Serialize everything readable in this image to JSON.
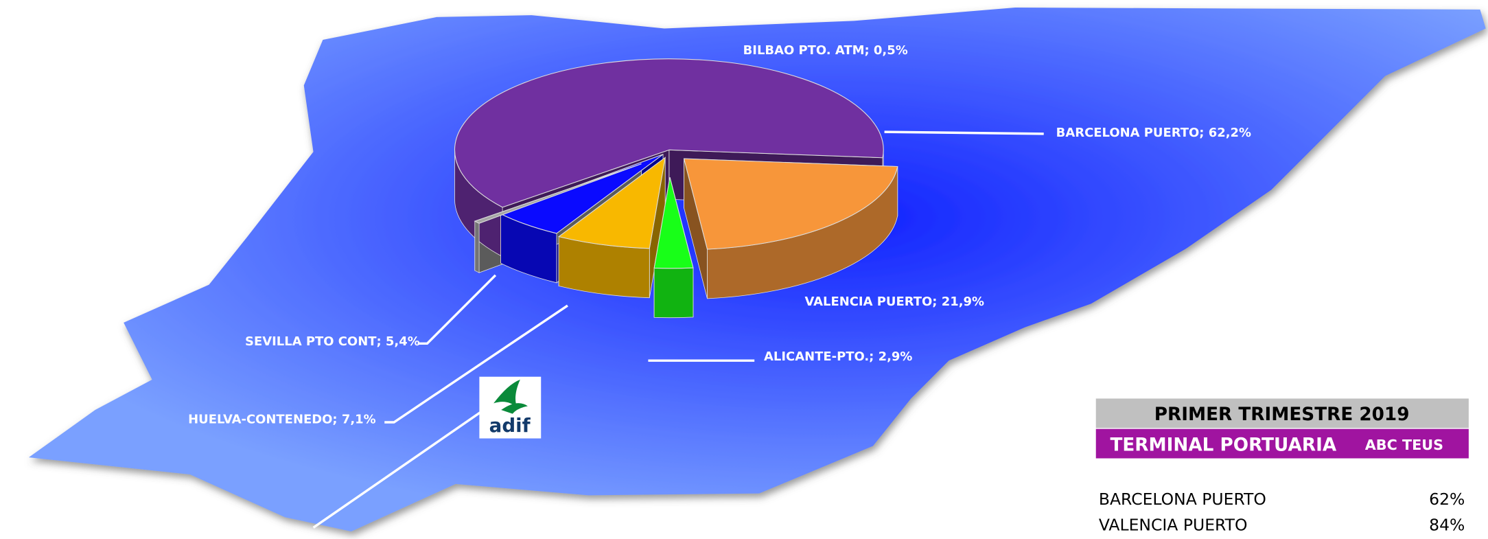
{
  "chart_data": {
    "type": "pie",
    "categories": [
      "BARCELONA PUERTO",
      "VALENCIA PUERTO",
      "ALICANTE-PTO.",
      "HUELVA-CONTENEDO",
      "SEVILLA PTO CONT",
      "BILBAO PTO. ATM"
    ],
    "values": [
      62.2,
      21.9,
      2.9,
      7.1,
      5.4,
      0.5
    ],
    "value_labels": [
      "62,2%",
      "21,9%",
      "2,9%",
      "7,1%",
      "5,4%",
      "0,5%"
    ],
    "label_separator": "; ",
    "colors": [
      "#7030a0",
      "#f7963a",
      "#18ff18",
      "#f8b800",
      "#0a0aff",
      "#a6a6a6"
    ]
  },
  "table": {
    "title": "PRIMER TRIMESTRE 2019",
    "header": [
      "TERMINAL PORTUARIA",
      "ABC TEUS"
    ],
    "rows": [
      [
        "BARCELONA PUERTO",
        "62%"
      ],
      [
        "VALENCIA PUERTO",
        "84%"
      ]
    ]
  },
  "logo": "adif"
}
